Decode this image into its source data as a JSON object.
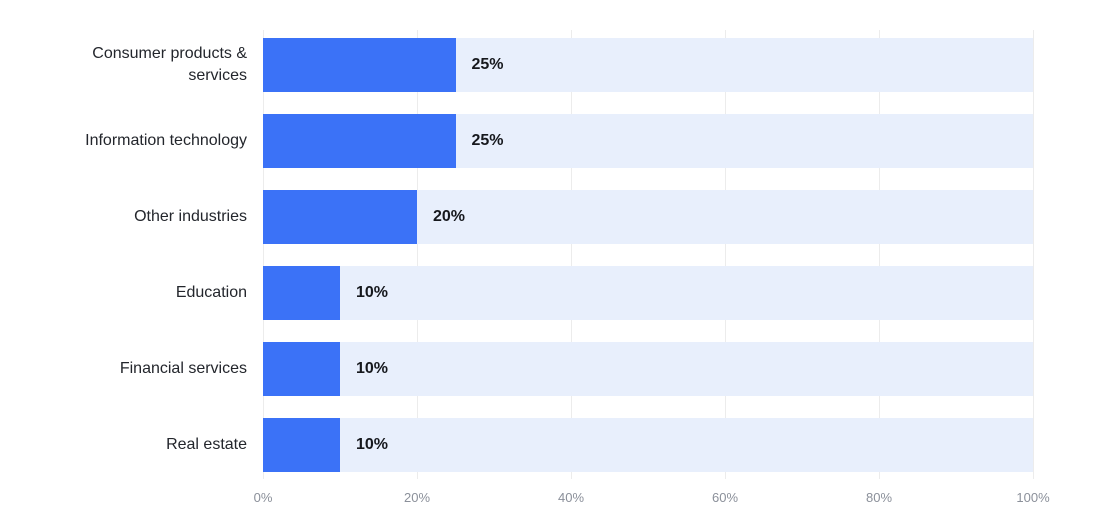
{
  "chart_data": {
    "type": "bar",
    "orientation": "horizontal",
    "title": "",
    "xlabel": "",
    "ylabel": "",
    "categories": [
      "Consumer products & services",
      "Information technology",
      "Other industries",
      "Education",
      "Financial services",
      "Real estate"
    ],
    "values": [
      25,
      25,
      20,
      10,
      10,
      10
    ],
    "value_labels": [
      "25%",
      "25%",
      "20%",
      "10%",
      "10%",
      "10%"
    ],
    "xlim": [
      0,
      100
    ],
    "x_tick_values": [
      0,
      20,
      40,
      60,
      80,
      100
    ],
    "x_tick_labels": [
      "0%",
      "20%",
      "40%",
      "60%",
      "80%",
      "100%"
    ],
    "grid": true,
    "legend": false,
    "colors": {
      "bar": "#3b72f7",
      "track": "#e8effc",
      "gridline": "#ececec",
      "category_label": "#23262c",
      "value_label": "#16181d",
      "tick_label": "#8b909a",
      "background": "#ffffff"
    }
  }
}
